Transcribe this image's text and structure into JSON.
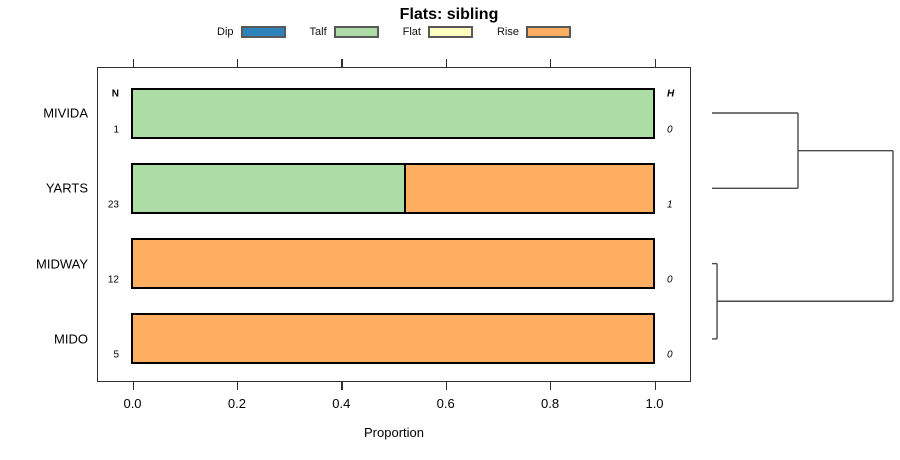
{
  "chart_data": {
    "type": "bar",
    "orientation": "horizontal",
    "stacked": true,
    "title": "Flats: sibling",
    "xlabel": "Proportion",
    "xlim": [
      0,
      1
    ],
    "xticks": [
      0.0,
      0.2,
      0.4,
      0.6,
      0.8,
      1.0
    ],
    "xtick_labels": [
      "0.0",
      "0.2",
      "0.4",
      "0.6",
      "0.8",
      "1.0"
    ],
    "categories": [
      "MIVIDA",
      "YARTS",
      "MIDWAY",
      "MIDO"
    ],
    "legend": [
      {
        "label": "Dip",
        "color": "#2B83BA"
      },
      {
        "label": "Talf",
        "color": "#ABDDA4"
      },
      {
        "label": "Flat",
        "color": "#FFFFBF"
      },
      {
        "label": "Rise",
        "color": "#FDAE61"
      }
    ],
    "series": [
      {
        "name": "Dip",
        "values": [
          0,
          0,
          0,
          0
        ]
      },
      {
        "name": "Talf",
        "values": [
          1.0,
          0.522,
          0,
          0
        ]
      },
      {
        "name": "Flat",
        "values": [
          0,
          0,
          0,
          0
        ]
      },
      {
        "name": "Rise",
        "values": [
          0,
          0.478,
          1.0,
          1.0
        ]
      }
    ],
    "n_column": {
      "header": "N",
      "values": [
        "1",
        "23",
        "12",
        "5"
      ]
    },
    "h_column": {
      "header": "H",
      "values": [
        "0",
        "1",
        "0",
        "0"
      ]
    },
    "legend_position": "top",
    "grid": false,
    "dendrogram": {
      "leaves": [
        "MIVIDA",
        "YARTS",
        "MIDWAY",
        "MIDO"
      ],
      "merges": [
        {
          "id": "m1",
          "children": [
            "MIVIDA",
            "YARTS"
          ],
          "height": 0.475
        },
        {
          "id": "m2",
          "children": [
            "MIDWAY",
            "MIDO"
          ],
          "height": 0.028
        },
        {
          "id": "m3",
          "children": [
            "m1",
            "m2"
          ],
          "height": 1.0
        }
      ]
    }
  }
}
